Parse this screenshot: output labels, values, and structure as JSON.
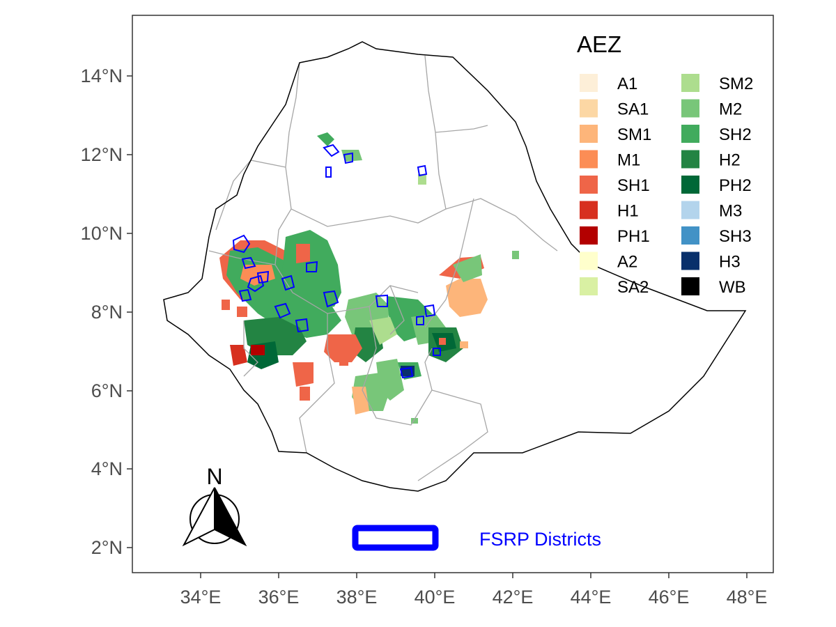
{
  "legend": {
    "title": "AEZ",
    "items": [
      {
        "code": "A1",
        "color": "#fdefd8"
      },
      {
        "code": "SA1",
        "color": "#fcd7a4"
      },
      {
        "code": "SM1",
        "color": "#fdb57a"
      },
      {
        "code": "M1",
        "color": "#fc8d55"
      },
      {
        "code": "SH1",
        "color": "#ef6548"
      },
      {
        "code": "H1",
        "color": "#d7301f"
      },
      {
        "code": "PH1",
        "color": "#b30000"
      },
      {
        "code": "A2",
        "color": "#ffffcc"
      },
      {
        "code": "SA2",
        "color": "#d9f0a3"
      },
      {
        "code": "SM2",
        "color": "#addd8e"
      },
      {
        "code": "M2",
        "color": "#78c679"
      },
      {
        "code": "SH2",
        "color": "#41ab5d"
      },
      {
        "code": "H2",
        "color": "#238443"
      },
      {
        "code": "PH2",
        "color": "#006837"
      },
      {
        "code": "M3",
        "color": "#b3d4ec"
      },
      {
        "code": "SH3",
        "color": "#4292c6"
      },
      {
        "code": "H3",
        "color": "#08306b"
      },
      {
        "code": "WB",
        "color": "#000000"
      }
    ]
  },
  "axes": {
    "x_ticks": [
      "34°E",
      "36°E",
      "38°E",
      "40°E",
      "42°E",
      "44°E",
      "46°E",
      "48°E"
    ],
    "y_ticks": [
      "2°N",
      "4°N",
      "6°N",
      "8°N",
      "10°N",
      "12°N",
      "14°N"
    ]
  },
  "districts_legend": {
    "label": "FSRP Districts",
    "color": "#0000ff"
  },
  "north_arrow": {
    "label": "N"
  },
  "colors": {
    "boundary": "#000000",
    "region_boundary": "#a6a6a6",
    "panel_border": "#333333"
  }
}
